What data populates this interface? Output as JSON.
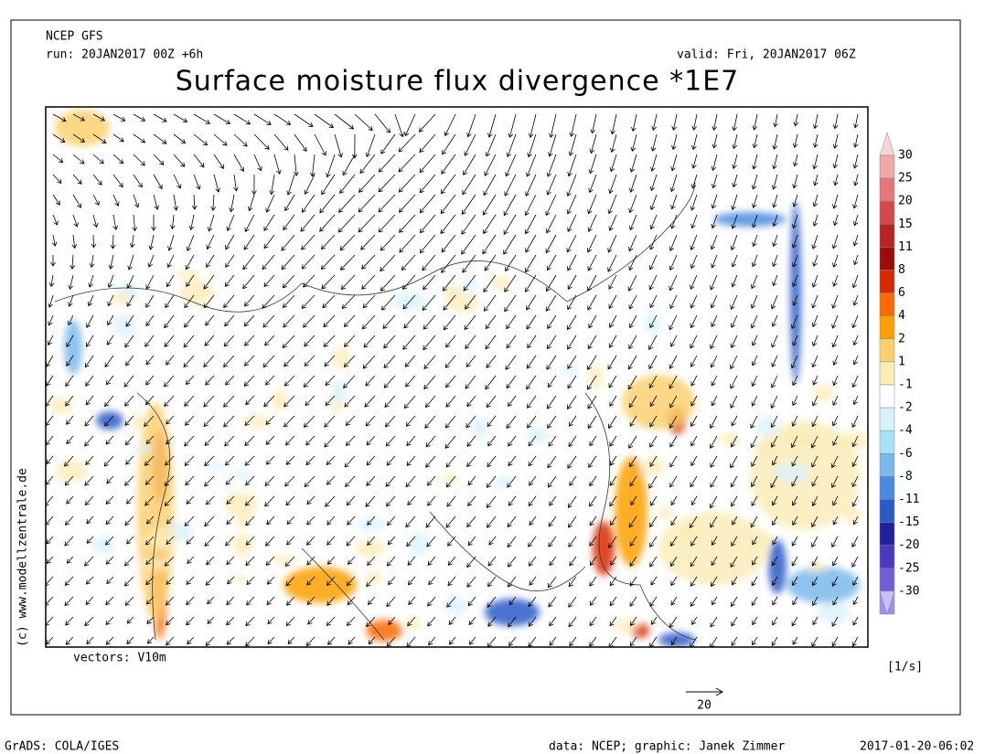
{
  "header": {
    "model": "NCEP GFS",
    "run": "run: 20JAN2017 00Z +6h",
    "valid": "valid: Fri, 20JAN2017 06Z",
    "title": "Surface moisture flux divergence *1E7"
  },
  "map": {
    "vectors_label": "vectors: V10m",
    "copyright": "(c) www.modellzentrale.de",
    "units": "[1/s]",
    "reference_vector": "20"
  },
  "colorbar": {
    "levels": [
      "30",
      "25",
      "20",
      "15",
      "11",
      "8",
      "6",
      "4",
      "2",
      "1",
      "-1",
      "-2",
      "-4",
      "-6",
      "-8",
      "-11",
      "-15",
      "-20",
      "-25",
      "-30"
    ],
    "colors": [
      "#f8d4d4",
      "#f0a8a8",
      "#e47878",
      "#d44a4a",
      "#b82424",
      "#a00a0a",
      "#d82800",
      "#ff6a00",
      "#ffa000",
      "#fcd070",
      "#fcecb8",
      "#ffffff",
      "#d8f2fc",
      "#a8e2f6",
      "#7ab8ec",
      "#4a8ae0",
      "#2a5ac8",
      "#2020a0",
      "#4a3ac0",
      "#7060d8",
      "#9c90ec",
      "#c8c0f8"
    ]
  },
  "footer": {
    "software": "GrADS: COLA/IGES",
    "credit": "data: NCEP; graphic: Janek Zimmer",
    "timestamp": "2017-01-20-06:02"
  }
}
